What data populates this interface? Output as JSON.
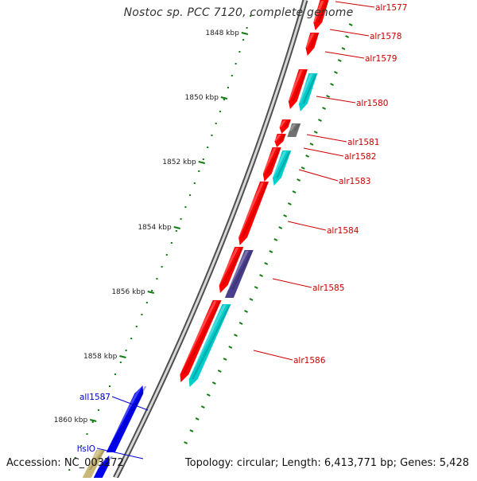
{
  "title": "Nostoc sp. PCC 7120, complete genome",
  "footer": {
    "accession": "Accession: NC_003272",
    "stats": "Topology: circular; Length: 6,413,771 bp; Genes: 5,428"
  },
  "colors": {
    "forward_gene": "#ff0000",
    "cyan_gene": "#00cccc",
    "gray_gene": "#707070",
    "purple_gene": "#4a3f8c",
    "reverse_gene": "#0000ee",
    "olive_gene": "#c8b878",
    "forward_label": "#cc0000",
    "reverse_label": "#0000cc",
    "tick_green": "#117a11",
    "backbone": "#808080"
  },
  "scale_labels": [
    "1848 kbp",
    "1850 kbp",
    "1852 kbp",
    "1854 kbp",
    "1856 kbp",
    "1858 kbp",
    "1860 kbp"
  ],
  "forward_genes": [
    "alr1577",
    "alr1578",
    "alr1579",
    "alr1580",
    "alr1581",
    "alr1582",
    "alr1583",
    "alr1584",
    "alr1585",
    "alr1586"
  ],
  "reverse_genes": [
    "all1587",
    "hslO"
  ]
}
